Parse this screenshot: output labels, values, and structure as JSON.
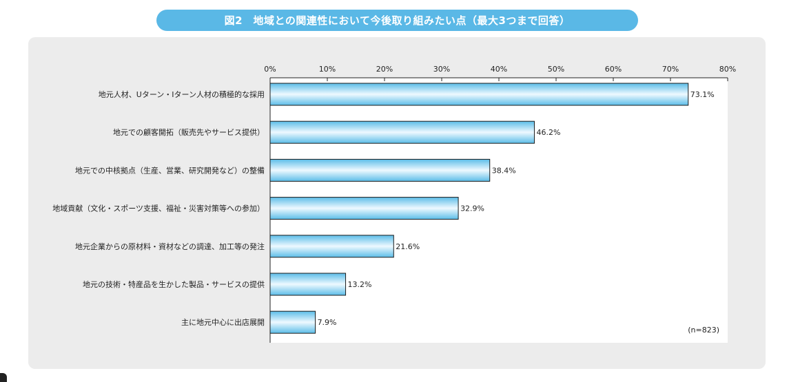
{
  "chart_data": {
    "type": "bar",
    "orientation": "horizontal",
    "title": "図2　地域との関連性において今後取り組みたい点（最大3つまで回答）",
    "xlabel": "",
    "ylabel": "",
    "xlim": [
      0,
      80
    ],
    "tick_labels": [
      "0%",
      "10%",
      "20%",
      "30%",
      "40%",
      "50%",
      "60%",
      "70%",
      "80%"
    ],
    "categories": [
      "地元人材、Uターン・Iターン人材の積極的な採用",
      "地元での顧客開拓（販売先やサービス提供）",
      "地元での中核拠点（生産、営業、研究開発など）の整備",
      "地域貢献（文化・スポーツ支援、福祉・災害対策等への参加）",
      "地元企業からの原材料・資材などの調達、加工等の発注",
      "地元の技術・特産品を生かした製品・サービスの提供",
      "主に地元中心に出店展開"
    ],
    "values": [
      73.1,
      46.2,
      38.4,
      32.9,
      21.6,
      13.2,
      7.9
    ],
    "value_labels": [
      "73.1%",
      "46.2%",
      "38.4%",
      "32.9%",
      "21.6%",
      "13.2%",
      "7.9%"
    ],
    "note": "(n=823)",
    "grid": false
  },
  "colors": {
    "title_bg": "#5ab8e6",
    "bar_light": "#eef9ff",
    "bar_dark": "#5cbde8",
    "bar_stroke": "#1a1a1a",
    "panel_bg": "#ececec",
    "plot_bg": "#ffffff"
  }
}
